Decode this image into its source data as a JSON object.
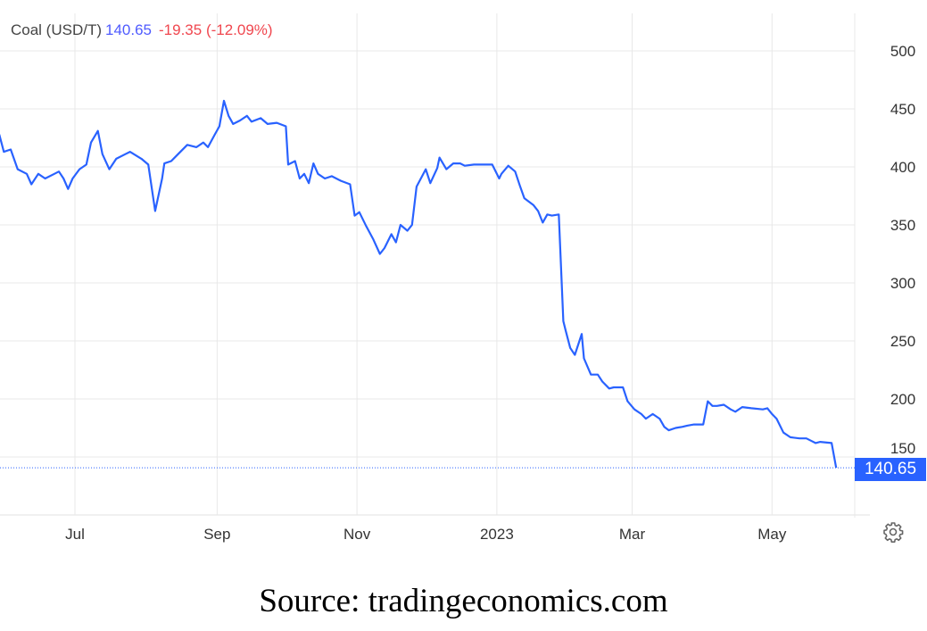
{
  "legend": {
    "name": "Coal (USD/T)",
    "last": "140.65",
    "change": "-19.35 (-12.09%)"
  },
  "price_label": "140.65",
  "source": "Source: tradingeconomics.com",
  "colors": {
    "line": "#2962ff",
    "last_value": "#4f5bff",
    "change": "#f0474f",
    "grid": "#e8e8e8"
  },
  "settings_icon": "gear-icon",
  "chart_data": {
    "type": "line",
    "title": "Coal (USD/T)",
    "xlabel": "",
    "ylabel": "",
    "ylim": [
      100,
      520
    ],
    "y_axis_side": "right",
    "grid": true,
    "y_ticks": [
      150,
      200,
      250,
      300,
      350,
      400,
      450,
      500
    ],
    "x_ticks": [
      {
        "date": "2022-07-01",
        "label": "Jul"
      },
      {
        "date": "2022-09-01",
        "label": "Sep"
      },
      {
        "date": "2022-11-01",
        "label": "Nov"
      },
      {
        "date": "2023-01-01",
        "label": "2023"
      },
      {
        "date": "2023-03-01",
        "label": "Mar"
      },
      {
        "date": "2023-05-01",
        "label": "May"
      }
    ],
    "last_value": 140.65,
    "series": [
      {
        "points": [
          [
            "2022-05-29",
            428
          ],
          [
            "2022-05-31",
            413
          ],
          [
            "2022-06-03",
            415
          ],
          [
            "2022-06-06",
            398
          ],
          [
            "2022-06-10",
            394
          ],
          [
            "2022-06-12",
            385
          ],
          [
            "2022-06-15",
            394
          ],
          [
            "2022-06-18",
            390
          ],
          [
            "2022-06-22",
            394
          ],
          [
            "2022-06-24",
            396
          ],
          [
            "2022-06-26",
            390
          ],
          [
            "2022-06-28",
            381
          ],
          [
            "2022-06-30",
            390
          ],
          [
            "2022-07-03",
            398
          ],
          [
            "2022-07-06",
            402
          ],
          [
            "2022-07-08",
            421
          ],
          [
            "2022-07-11",
            431
          ],
          [
            "2022-07-13",
            411
          ],
          [
            "2022-07-16",
            398
          ],
          [
            "2022-07-19",
            407
          ],
          [
            "2022-07-23",
            411
          ],
          [
            "2022-07-25",
            413
          ],
          [
            "2022-07-30",
            407
          ],
          [
            "2022-08-02",
            402
          ],
          [
            "2022-08-05",
            362
          ],
          [
            "2022-08-08",
            390
          ],
          [
            "2022-08-09",
            403
          ],
          [
            "2022-08-12",
            405
          ],
          [
            "2022-08-15",
            411
          ],
          [
            "2022-08-19",
            419
          ],
          [
            "2022-08-23",
            417
          ],
          [
            "2022-08-26",
            421
          ],
          [
            "2022-08-28",
            417
          ],
          [
            "2022-08-31",
            428
          ],
          [
            "2022-09-02",
            435
          ],
          [
            "2022-09-04",
            457
          ],
          [
            "2022-09-06",
            444
          ],
          [
            "2022-09-08",
            437
          ],
          [
            "2022-09-11",
            440
          ],
          [
            "2022-09-14",
            444
          ],
          [
            "2022-09-16",
            439
          ],
          [
            "2022-09-20",
            442
          ],
          [
            "2022-09-23",
            437
          ],
          [
            "2022-09-27",
            438
          ],
          [
            "2022-10-01",
            435
          ],
          [
            "2022-10-02",
            402
          ],
          [
            "2022-10-05",
            405
          ],
          [
            "2022-10-07",
            390
          ],
          [
            "2022-10-09",
            394
          ],
          [
            "2022-10-11",
            386
          ],
          [
            "2022-10-13",
            403
          ],
          [
            "2022-10-15",
            394
          ],
          [
            "2022-10-18",
            390
          ],
          [
            "2022-10-21",
            392
          ],
          [
            "2022-10-25",
            388
          ],
          [
            "2022-10-29",
            385
          ],
          [
            "2022-10-31",
            358
          ],
          [
            "2022-11-02",
            361
          ],
          [
            "2022-11-05",
            349
          ],
          [
            "2022-11-08",
            338
          ],
          [
            "2022-11-11",
            325
          ],
          [
            "2022-11-13",
            330
          ],
          [
            "2022-11-16",
            342
          ],
          [
            "2022-11-18",
            335
          ],
          [
            "2022-11-20",
            350
          ],
          [
            "2022-11-23",
            345
          ],
          [
            "2022-11-25",
            350
          ],
          [
            "2022-11-27",
            383
          ],
          [
            "2022-12-01",
            398
          ],
          [
            "2022-12-03",
            386
          ],
          [
            "2022-12-06",
            399
          ],
          [
            "2022-12-07",
            408
          ],
          [
            "2022-12-10",
            398
          ],
          [
            "2022-12-13",
            403
          ],
          [
            "2022-12-16",
            403
          ],
          [
            "2022-12-18",
            401
          ],
          [
            "2022-12-22",
            402
          ],
          [
            "2022-12-28",
            402
          ],
          [
            "2022-12-30",
            402
          ],
          [
            "2023-01-02",
            390
          ],
          [
            "2023-01-03",
            394
          ],
          [
            "2023-01-06",
            401
          ],
          [
            "2023-01-09",
            396
          ],
          [
            "2023-01-11",
            384
          ],
          [
            "2023-01-13",
            373
          ],
          [
            "2023-01-17",
            367
          ],
          [
            "2023-01-19",
            362
          ],
          [
            "2023-01-21",
            352
          ],
          [
            "2023-01-23",
            359
          ],
          [
            "2023-01-25",
            358
          ],
          [
            "2023-01-28",
            359
          ],
          [
            "2023-01-30",
            267
          ],
          [
            "2023-01-31",
            259
          ],
          [
            "2023-02-02",
            244
          ],
          [
            "2023-02-04",
            238
          ],
          [
            "2023-02-07",
            256
          ],
          [
            "2023-02-08",
            235
          ],
          [
            "2023-02-11",
            221
          ],
          [
            "2023-02-14",
            221
          ],
          [
            "2023-02-16",
            215
          ],
          [
            "2023-02-19",
            209
          ],
          [
            "2023-02-21",
            210
          ],
          [
            "2023-02-25",
            210
          ],
          [
            "2023-02-27",
            198
          ],
          [
            "2023-03-02",
            191
          ],
          [
            "2023-03-05",
            187
          ],
          [
            "2023-03-07",
            183
          ],
          [
            "2023-03-10",
            187
          ],
          [
            "2023-03-13",
            183
          ],
          [
            "2023-03-15",
            176
          ],
          [
            "2023-03-17",
            173
          ],
          [
            "2023-03-20",
            175
          ],
          [
            "2023-03-23",
            176
          ],
          [
            "2023-03-25",
            177
          ],
          [
            "2023-03-28",
            178
          ],
          [
            "2023-04-01",
            178
          ],
          [
            "2023-04-03",
            198
          ],
          [
            "2023-04-05",
            194
          ],
          [
            "2023-04-07",
            194
          ],
          [
            "2023-04-10",
            195
          ],
          [
            "2023-04-13",
            191
          ],
          [
            "2023-04-15",
            189
          ],
          [
            "2023-04-18",
            193
          ],
          [
            "2023-04-22",
            192
          ],
          [
            "2023-04-27",
            191
          ],
          [
            "2023-04-29",
            192
          ],
          [
            "2023-05-01",
            187
          ],
          [
            "2023-05-03",
            183
          ],
          [
            "2023-05-06",
            171
          ],
          [
            "2023-05-09",
            167
          ],
          [
            "2023-05-13",
            166
          ],
          [
            "2023-05-16",
            166
          ],
          [
            "2023-05-18",
            164
          ],
          [
            "2023-05-20",
            162
          ],
          [
            "2023-05-22",
            163
          ],
          [
            "2023-05-27",
            162
          ],
          [
            "2023-05-29",
            140.65
          ]
        ]
      }
    ]
  }
}
